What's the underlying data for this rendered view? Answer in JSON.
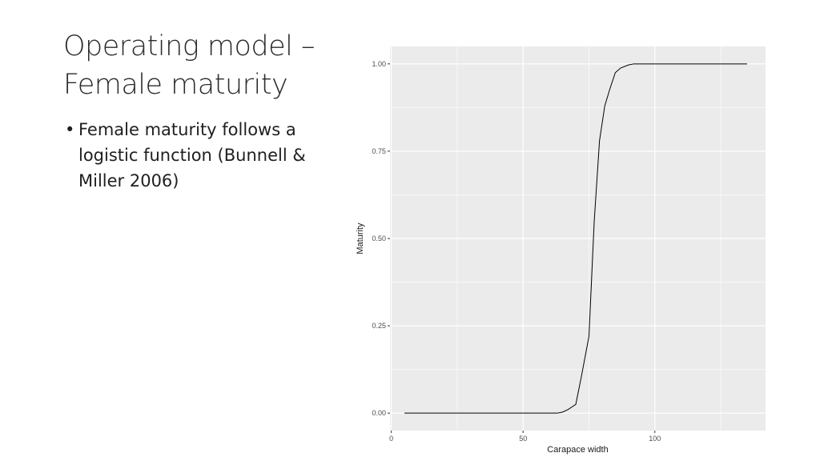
{
  "slide": {
    "title_line1": "Operating model –",
    "title_line2": "Female maturity",
    "bullets": [
      "Female maturity follows a logistic function (Bunnell & Miller 2006)"
    ]
  },
  "chart_data": {
    "type": "line",
    "xlabel": "Carapace width",
    "ylabel": "Maturity",
    "xlim": [
      -0.5,
      142
    ],
    "ylim": [
      -0.05,
      1.05
    ],
    "xticks": [
      0,
      50,
      100
    ],
    "xtick_labels": [
      "0",
      "50",
      "100"
    ],
    "xminor": [
      25,
      75,
      125
    ],
    "yticks": [
      0,
      0.25,
      0.5,
      0.75,
      1.0
    ],
    "ytick_labels": [
      "0.00",
      "0.25",
      "0.50",
      "0.75",
      "1.00"
    ],
    "yminor": [
      0.125,
      0.375,
      0.625,
      0.875
    ],
    "grid": true,
    "background": "#ebebeb",
    "gridline_color": "#ffffff",
    "line_color": "#000000",
    "series": [
      {
        "x": [
          5,
          10,
          20,
          30,
          40,
          50,
          60,
          63,
          65,
          67,
          70,
          72,
          75,
          77,
          79,
          81,
          83,
          85,
          87,
          90,
          92,
          95,
          100,
          110,
          120,
          130,
          135
        ],
        "y": [
          0,
          0,
          0,
          0,
          0,
          0,
          0,
          0,
          0.003,
          0.01,
          0.025,
          0.1,
          0.22,
          0.55,
          0.78,
          0.88,
          0.93,
          0.975,
          0.988,
          0.997,
          1.0,
          1.0,
          1.0,
          1.0,
          1.0,
          1.0,
          1.0
        ]
      }
    ]
  }
}
